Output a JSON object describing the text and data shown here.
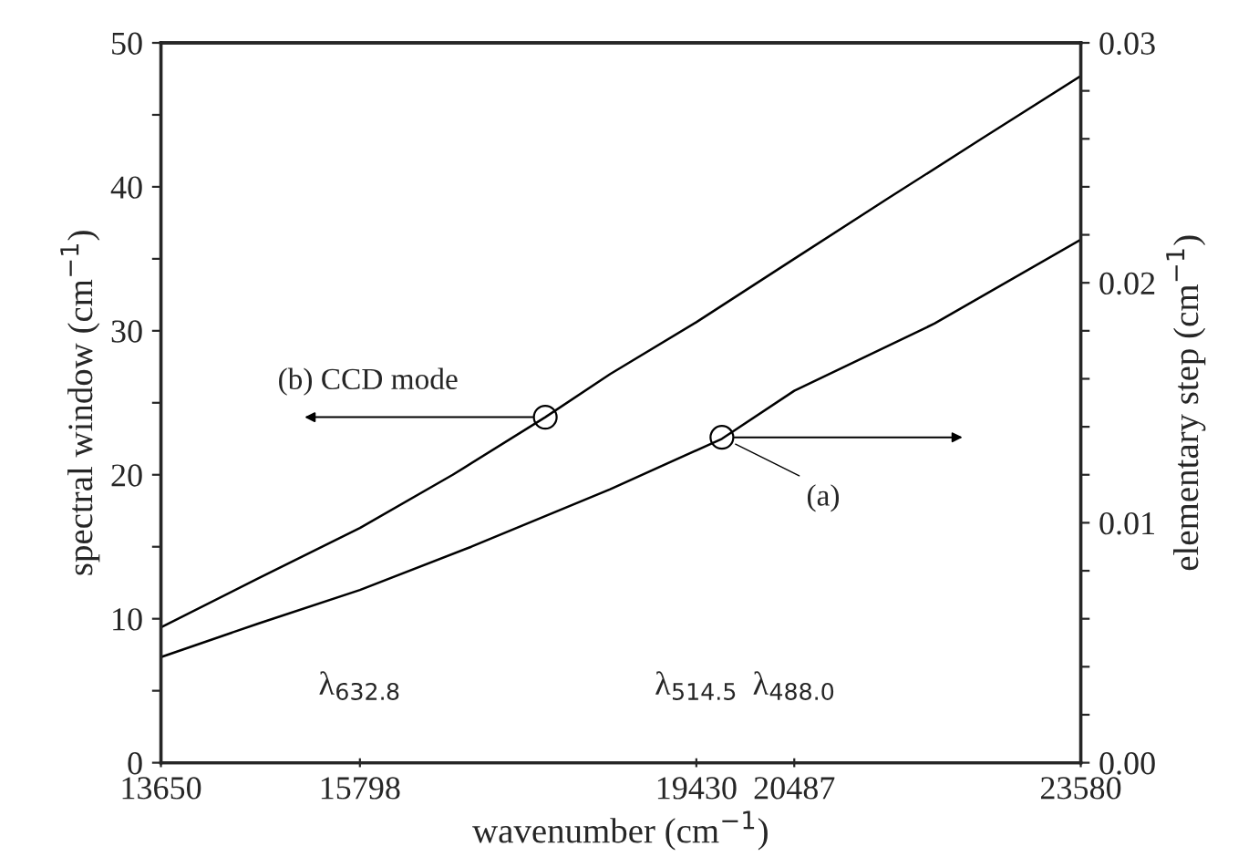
{
  "chart_data": {
    "type": "line",
    "xlabel": "wavenumber (cm$^{−1}$)",
    "ylabel": "spectral window (cm$^{−1}$)",
    "y2label": "elementary step (cm$^{−1}$)",
    "xlim": [
      13650,
      23580
    ],
    "xticks": [
      13650,
      15798,
      19430,
      20487,
      23580
    ],
    "ylim": [
      0,
      50
    ],
    "yticks": [
      0,
      {
        "value": 5,
        "label": null
      },
      10,
      {
        "value": 15,
        "label": null
      },
      20,
      {
        "value": 25,
        "label": null
      },
      30,
      {
        "value": 35,
        "label": null
      },
      40,
      {
        "value": 45,
        "label": null
      },
      50
    ],
    "y2lim": [
      0,
      0.03
    ],
    "y2ticks": [
      {
        "value": 0,
        "label": "0.00"
      },
      {
        "value": 0.002,
        "label": null
      },
      {
        "value": 0.004,
        "label": null
      },
      {
        "value": 0.006,
        "label": null
      },
      {
        "value": 0.008,
        "label": null
      },
      {
        "value": 0.01,
        "label": "0.01"
      },
      {
        "value": 0.012,
        "label": null
      },
      {
        "value": 0.014,
        "label": null
      },
      {
        "value": 0.016,
        "label": null
      },
      {
        "value": 0.018,
        "label": null
      },
      {
        "value": 0.02,
        "label": "0.02"
      },
      {
        "value": 0.022,
        "label": null
      },
      {
        "value": 0.024,
        "label": null
      },
      {
        "value": 0.026,
        "label": null
      },
      {
        "value": 0.028,
        "label": null
      },
      {
        "value": 0.03,
        "label": "0.03"
      }
    ],
    "grid": false,
    "legend": false,
    "marker": "none",
    "line_style": "solid",
    "series": [
      {
        "color": "#000000",
        "x": [
          13650,
          14700,
          15798,
          16800,
          17799,
          18500,
          19430,
          20487,
          21500,
          22500,
          23580
        ],
        "values": [
          9.4,
          12.8,
          16.3,
          20.0,
          24.0,
          27.0,
          30.6,
          35.0,
          39.2,
          43.3,
          47.7
        ]
      },
      {
        "color": "#000000",
        "axis": "y2",
        "x": [
          13650,
          14700,
          15798,
          17000,
          18500,
          19706,
          20487,
          22000,
          23580
        ],
        "values": [
          0.0044,
          0.0058,
          0.0072,
          0.009,
          0.0114,
          0.0135,
          0.0155,
          0.0183,
          0.0218
        ]
      }
    ],
    "annotations": [
      {
        "text": "(b) CCD mode",
        "x": 17799,
        "y": 24.0
      },
      {
        "text": "(a)",
        "x": 19706,
        "y": 22.6
      },
      "λ$_{632.8}$",
      "λ$_{514.5}$",
      "λ$_{488.0}$"
    ]
  }
}
